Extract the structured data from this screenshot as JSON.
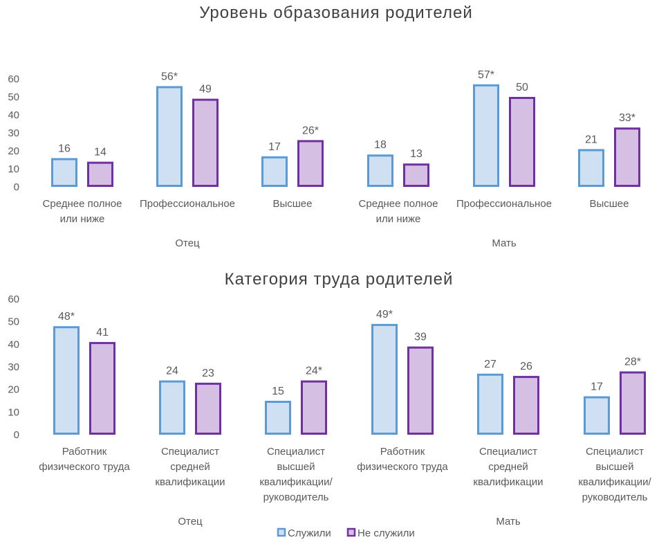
{
  "legend": [
    {
      "name": "Служили",
      "fill": "#cfe0f3",
      "stroke": "#5b9bd5"
    },
    {
      "name": "Не служили",
      "fill": "#d5c0e4",
      "stroke": "#7030a0"
    }
  ],
  "chart_data": [
    {
      "type": "bar",
      "title": "Уровень образования родителей",
      "ylim": [
        0,
        60
      ],
      "yticks": [
        0,
        10,
        20,
        30,
        40,
        50,
        60
      ],
      "grid": false,
      "legend_placement": "bottom",
      "groups": [
        {
          "name": "Отец",
          "categories": [
            {
              "label": [
                "Среднее полное",
                "или ниже"
              ],
              "values": [
                16,
                14
              ],
              "labels": [
                "16",
                "14"
              ]
            },
            {
              "label": [
                "Профессиональное"
              ],
              "values": [
                56,
                49
              ],
              "labels": [
                "56*",
                "49"
              ]
            },
            {
              "label": [
                "Высшее"
              ],
              "values": [
                17,
                26
              ],
              "labels": [
                "17",
                "26*"
              ]
            }
          ]
        },
        {
          "name": "Мать",
          "categories": [
            {
              "label": [
                "Среднее полное",
                "или ниже"
              ],
              "values": [
                18,
                13
              ],
              "labels": [
                "18",
                "13"
              ]
            },
            {
              "label": [
                "Профессиональное"
              ],
              "values": [
                57,
                50
              ],
              "labels": [
                "57*",
                "50"
              ]
            },
            {
              "label": [
                "Высшее"
              ],
              "values": [
                21,
                33
              ],
              "labels": [
                "21",
                "33*"
              ]
            }
          ]
        }
      ],
      "series": [
        {
          "name": "Служили",
          "values": [
            16,
            56,
            17,
            18,
            57,
            21
          ]
        },
        {
          "name": "Не служили",
          "values": [
            14,
            49,
            26,
            13,
            50,
            33
          ]
        }
      ]
    },
    {
      "type": "bar",
      "title": "Категория труда родителей",
      "ylim": [
        0,
        60
      ],
      "yticks": [
        0,
        10,
        20,
        30,
        40,
        50,
        60
      ],
      "grid": false,
      "legend_placement": "bottom",
      "groups": [
        {
          "name": "Отец",
          "categories": [
            {
              "label": [
                "Работник",
                "физического труда"
              ],
              "values": [
                48,
                41
              ],
              "labels": [
                "48*",
                "41"
              ]
            },
            {
              "label": [
                "Специалист",
                "средней",
                "квалификации"
              ],
              "values": [
                24,
                23
              ],
              "labels": [
                "24",
                "23"
              ]
            },
            {
              "label": [
                "Специалист",
                "высшей",
                "квалификации/",
                "руководитель"
              ],
              "values": [
                15,
                24
              ],
              "labels": [
                "15",
                "24*"
              ]
            }
          ]
        },
        {
          "name": "Мать",
          "categories": [
            {
              "label": [
                "Работник",
                "физического труда"
              ],
              "values": [
                49,
                39
              ],
              "labels": [
                "49*",
                "39"
              ]
            },
            {
              "label": [
                "Специалист",
                "средней",
                "квалификации"
              ],
              "values": [
                27,
                26
              ],
              "labels": [
                "27",
                "26"
              ]
            },
            {
              "label": [
                "Специалист",
                "высшей",
                "квалификации/",
                "руководитель"
              ],
              "values": [
                17,
                28
              ],
              "labels": [
                "17",
                "28*"
              ]
            }
          ]
        }
      ],
      "series": [
        {
          "name": "Служили",
          "values": [
            48,
            24,
            15,
            49,
            27,
            17
          ]
        },
        {
          "name": "Не служили",
          "values": [
            41,
            23,
            24,
            39,
            26,
            28
          ]
        }
      ]
    }
  ]
}
